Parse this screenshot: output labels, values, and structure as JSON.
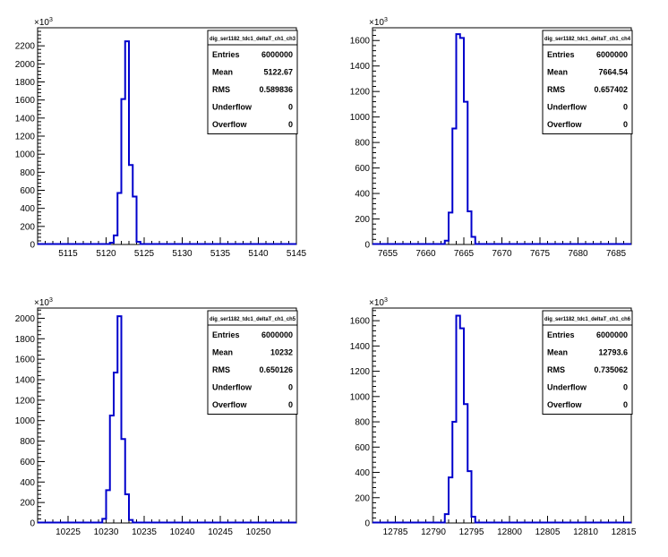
{
  "colors": {
    "histogram_line": "#0000cc",
    "axes": "#000000",
    "background": "#ffffff"
  },
  "chart_data": [
    {
      "type": "histogram",
      "name": "dig_ser1182_tdc1_deltaT_ch1_ch3",
      "x_range": [
        5111,
        5145
      ],
      "y_range": [
        0,
        2400
      ],
      "x_ticks": [
        5115,
        5120,
        5125,
        5130,
        5135,
        5140,
        5145
      ],
      "y_ticks": [
        0,
        200,
        400,
        600,
        800,
        1000,
        1200,
        1400,
        1600,
        1800,
        2000,
        2200
      ],
      "y_multiplier": "×10",
      "y_multiplier_exp": "3",
      "bin_width": 0.5,
      "bins_x_start": [
        5120.5,
        5121.0,
        5121.5,
        5122.0,
        5122.5,
        5123.0,
        5123.5,
        5124.0
      ],
      "bin_values": [
        20,
        100,
        570,
        1610,
        2250,
        880,
        530,
        30
      ],
      "stats": [
        {
          "label": "Entries",
          "value": "6000000"
        },
        {
          "label": "Mean",
          "value": "5122.67"
        },
        {
          "label": "RMS",
          "value": "0.589836"
        },
        {
          "label": "Underflow",
          "value": "0"
        },
        {
          "label": "Overflow",
          "value": "0"
        }
      ]
    },
    {
      "type": "histogram",
      "name": "dig_ser1182_tdc1_deltaT_ch1_ch4",
      "x_range": [
        7653,
        7687
      ],
      "y_range": [
        0,
        1700
      ],
      "x_ticks": [
        7655,
        7660,
        7665,
        7670,
        7675,
        7680,
        7685
      ],
      "y_ticks": [
        0,
        200,
        400,
        600,
        800,
        1000,
        1200,
        1400,
        1600
      ],
      "y_multiplier": "×10",
      "y_multiplier_exp": "3",
      "bin_width": 0.5,
      "bins_x_start": [
        7662.5,
        7663.0,
        7663.5,
        7664.0,
        7664.5,
        7665.0,
        7665.5,
        7666.0
      ],
      "bin_values": [
        30,
        250,
        910,
        1650,
        1620,
        1120,
        260,
        60
      ],
      "stats": [
        {
          "label": "Entries",
          "value": "6000000"
        },
        {
          "label": "Mean",
          "value": "7664.54"
        },
        {
          "label": "RMS",
          "value": "0.657402"
        },
        {
          "label": "Underflow",
          "value": "0"
        },
        {
          "label": "Overflow",
          "value": "0"
        }
      ]
    },
    {
      "type": "histogram",
      "name": "dig_ser1182_tdc1_deltaT_ch1_ch5",
      "x_range": [
        10221,
        10255
      ],
      "y_range": [
        0,
        2100
      ],
      "x_ticks": [
        10225,
        10230,
        10235,
        10240,
        10245,
        10250
      ],
      "y_ticks": [
        0,
        200,
        400,
        600,
        800,
        1000,
        1200,
        1400,
        1600,
        1800,
        2000
      ],
      "y_multiplier": "×10",
      "y_multiplier_exp": "3",
      "bin_width": 0.5,
      "bins_x_start": [
        10229.5,
        10230.0,
        10230.5,
        10231.0,
        10231.5,
        10232.0,
        10232.5,
        10233.0
      ],
      "bin_values": [
        40,
        320,
        1050,
        1470,
        2020,
        820,
        280,
        30
      ],
      "stats": [
        {
          "label": "Entries",
          "value": "6000000"
        },
        {
          "label": "Mean",
          "value": "10232"
        },
        {
          "label": "RMS",
          "value": "0.650126"
        },
        {
          "label": "Underflow",
          "value": "0"
        },
        {
          "label": "Overflow",
          "value": "0"
        }
      ]
    },
    {
      "type": "histogram",
      "name": "dig_ser1182_tdc1_deltaT_ch1_ch6",
      "x_range": [
        12782,
        12816
      ],
      "y_range": [
        0,
        1700
      ],
      "x_ticks": [
        12785,
        12790,
        12795,
        12800,
        12805,
        12810,
        12815
      ],
      "y_ticks": [
        0,
        200,
        400,
        600,
        800,
        1000,
        1200,
        1400,
        1600
      ],
      "y_multiplier": "×10",
      "y_multiplier_exp": "3",
      "bin_width": 0.5,
      "bins_x_start": [
        12791.5,
        12792.0,
        12792.5,
        12793.0,
        12793.5,
        12794.0,
        12794.5,
        12795.0
      ],
      "bin_values": [
        70,
        360,
        800,
        1640,
        1540,
        940,
        410,
        50
      ],
      "stats": [
        {
          "label": "Entries",
          "value": "6000000"
        },
        {
          "label": "Mean",
          "value": "12793.6"
        },
        {
          "label": "RMS",
          "value": "0.735062"
        },
        {
          "label": "Underflow",
          "value": "0"
        },
        {
          "label": "Overflow",
          "value": "0"
        }
      ]
    }
  ]
}
